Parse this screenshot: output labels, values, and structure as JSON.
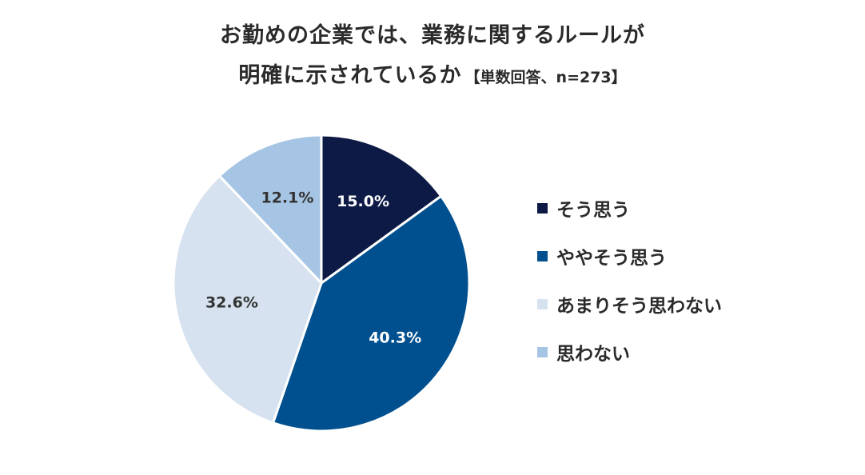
{
  "title": {
    "line1": "お勤めの企業では、業務に関するルールが",
    "line2": "明確に示されているか",
    "note": "【単数回答、n=273】"
  },
  "chart_data": {
    "type": "pie",
    "start_angle_deg": 0,
    "direction": "clockwise",
    "slices": [
      {
        "label": "そう思う",
        "value": 15.0,
        "display": "15.0%",
        "color": "#0d1a45",
        "label_color": "#ffffff"
      },
      {
        "label": "ややそう思う",
        "value": 40.3,
        "display": "40.3%",
        "color": "#00508f",
        "label_color": "#ffffff"
      },
      {
        "label": "あまりそう思わない",
        "value": 32.6,
        "display": "32.6%",
        "color": "#d6e2ef",
        "label_color": "#333333"
      },
      {
        "label": "思わない",
        "value": 12.1,
        "display": "12.1%",
        "color": "#a6c4e3",
        "label_color": "#333333"
      }
    ],
    "legend_position": "right"
  }
}
